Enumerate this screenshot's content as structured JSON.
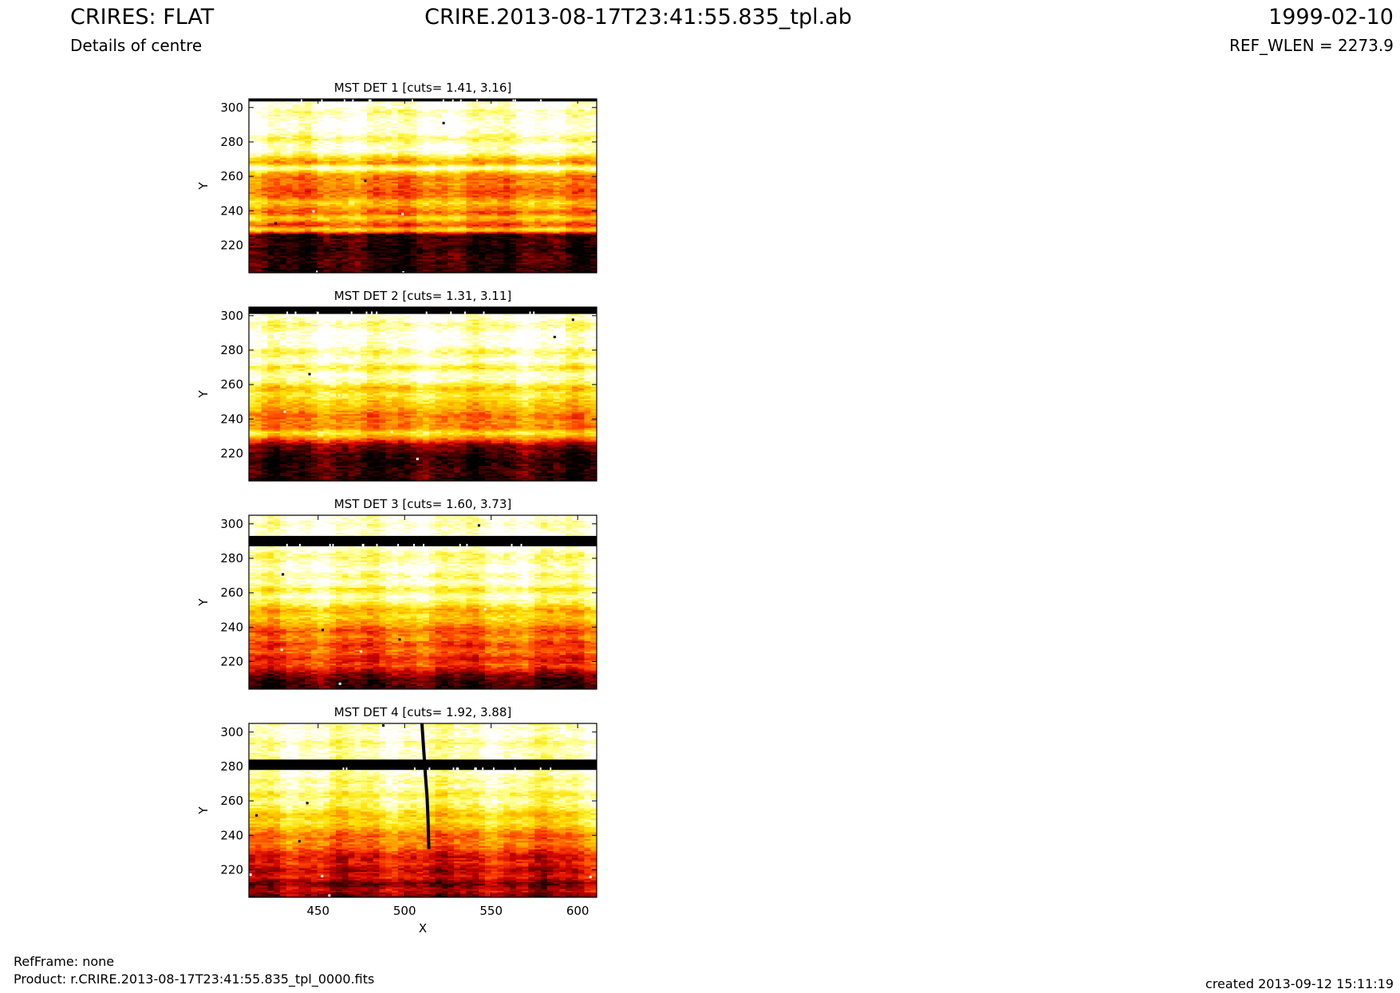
{
  "header": {
    "title_left": "CRIRES: FLAT",
    "subtitle_left": "Details of centre",
    "title_center": "CRIRE.2013-08-17T23:41:55.835_tpl.ab",
    "title_right": "1999-02-10",
    "subtitle_right": "REF_WLEN = 2273.9"
  },
  "footer": {
    "refframe": "RefFrame: none",
    "product": "Product: r.CRIRE.2013-08-17T23:41:55.835_tpl_0000.fits",
    "created": "created 2013-09-12 15:11:19"
  },
  "colors": {
    "colormap": [
      "#000000",
      "#5a0000",
      "#c80000",
      "#ff4000",
      "#ff9a00",
      "#ffe000",
      "#ffff80",
      "#ffffff"
    ]
  },
  "chart_data": [
    {
      "type": "heatmap",
      "title": "MST DET 1 [cuts= 1.41, 3.16]",
      "xlabel": "",
      "ylabel": "Y",
      "xlim": [
        410,
        611
      ],
      "ylim": [
        204,
        305
      ],
      "xticks": [
        450,
        500,
        550,
        600
      ],
      "yticks": [
        220,
        240,
        260,
        280,
        300
      ],
      "cuts": [
        1.41,
        3.16
      ],
      "row_profile": [
        {
          "y": 204,
          "v": 0.05
        },
        {
          "y": 212,
          "v": 0.1
        },
        {
          "y": 218,
          "v": 0.05
        },
        {
          "y": 222,
          "v": 0.1
        },
        {
          "y": 226,
          "v": 0.06
        },
        {
          "y": 229,
          "v": 0.75
        },
        {
          "y": 232,
          "v": 0.4
        },
        {
          "y": 236,
          "v": 0.72
        },
        {
          "y": 239,
          "v": 0.45
        },
        {
          "y": 242,
          "v": 0.58
        },
        {
          "y": 245,
          "v": 0.7
        },
        {
          "y": 248,
          "v": 0.5
        },
        {
          "y": 252,
          "v": 0.45
        },
        {
          "y": 256,
          "v": 0.55
        },
        {
          "y": 259,
          "v": 0.5
        },
        {
          "y": 262,
          "v": 0.62
        },
        {
          "y": 265,
          "v": 1.0
        },
        {
          "y": 268,
          "v": 0.55
        },
        {
          "y": 271,
          "v": 0.7
        },
        {
          "y": 274,
          "v": 0.95
        },
        {
          "y": 278,
          "v": 0.98
        },
        {
          "y": 282,
          "v": 0.82
        },
        {
          "y": 286,
          "v": 0.98
        },
        {
          "y": 290,
          "v": 1.0
        },
        {
          "y": 294,
          "v": 0.97
        },
        {
          "y": 298,
          "v": 0.88
        },
        {
          "y": 300,
          "v": 1.0
        },
        {
          "y": 305,
          "v": 1.0
        }
      ],
      "masked_rows": [
        [
          303.5,
          305
        ]
      ]
    },
    {
      "type": "heatmap",
      "title": "MST DET 2 [cuts= 1.31, 3.11]",
      "xlabel": "",
      "ylabel": "Y",
      "xlim": [
        410,
        611
      ],
      "ylim": [
        204,
        305
      ],
      "xticks": [
        450,
        500,
        550,
        600
      ],
      "yticks": [
        220,
        240,
        260,
        280,
        300
      ],
      "cuts": [
        1.31,
        3.11
      ],
      "row_profile": [
        {
          "y": 204,
          "v": 0.05
        },
        {
          "y": 210,
          "v": 0.1
        },
        {
          "y": 216,
          "v": 0.05
        },
        {
          "y": 220,
          "v": 0.12
        },
        {
          "y": 225,
          "v": 0.2
        },
        {
          "y": 229,
          "v": 0.55
        },
        {
          "y": 232,
          "v": 0.78
        },
        {
          "y": 235,
          "v": 0.5
        },
        {
          "y": 238,
          "v": 0.55
        },
        {
          "y": 242,
          "v": 0.5
        },
        {
          "y": 246,
          "v": 0.62
        },
        {
          "y": 250,
          "v": 0.68
        },
        {
          "y": 254,
          "v": 0.8
        },
        {
          "y": 258,
          "v": 0.65
        },
        {
          "y": 262,
          "v": 0.9
        },
        {
          "y": 266,
          "v": 0.98
        },
        {
          "y": 270,
          "v": 0.75
        },
        {
          "y": 274,
          "v": 1.0
        },
        {
          "y": 279,
          "v": 0.82
        },
        {
          "y": 283,
          "v": 1.0
        },
        {
          "y": 290,
          "v": 1.0
        },
        {
          "y": 295,
          "v": 0.86
        },
        {
          "y": 299,
          "v": 1.0
        },
        {
          "y": 305,
          "v": 1.0
        }
      ],
      "masked_rows": [
        [
          301,
          305
        ]
      ]
    },
    {
      "type": "heatmap",
      "title": "MST DET 3 [cuts= 1.60, 3.73]",
      "xlabel": "",
      "ylabel": "Y",
      "xlim": [
        410,
        611
      ],
      "ylim": [
        204,
        305
      ],
      "xticks": [
        450,
        500,
        550,
        600
      ],
      "yticks": [
        220,
        240,
        260,
        280,
        300
      ],
      "cuts": [
        1.6,
        3.73
      ],
      "row_profile": [
        {
          "y": 204,
          "v": 0.08
        },
        {
          "y": 210,
          "v": 0.12
        },
        {
          "y": 214,
          "v": 0.25
        },
        {
          "y": 218,
          "v": 0.45
        },
        {
          "y": 222,
          "v": 0.35
        },
        {
          "y": 226,
          "v": 0.5
        },
        {
          "y": 230,
          "v": 0.4
        },
        {
          "y": 234,
          "v": 0.55
        },
        {
          "y": 238,
          "v": 0.45
        },
        {
          "y": 242,
          "v": 0.6
        },
        {
          "y": 246,
          "v": 0.72
        },
        {
          "y": 250,
          "v": 0.6
        },
        {
          "y": 254,
          "v": 0.82
        },
        {
          "y": 258,
          "v": 0.95
        },
        {
          "y": 262,
          "v": 0.75
        },
        {
          "y": 266,
          "v": 0.98
        },
        {
          "y": 270,
          "v": 0.85
        },
        {
          "y": 274,
          "v": 1.0
        },
        {
          "y": 278,
          "v": 0.9
        },
        {
          "y": 282,
          "v": 0.85
        },
        {
          "y": 286,
          "v": 1.0
        },
        {
          "y": 292,
          "v": 1.0
        },
        {
          "y": 296,
          "v": 1.0
        },
        {
          "y": 300,
          "v": 0.92
        },
        {
          "y": 305,
          "v": 1.0
        }
      ],
      "masked_rows": [
        [
          287,
          293
        ]
      ]
    },
    {
      "type": "heatmap",
      "title": "MST DET 4 [cuts= 1.92, 3.88]",
      "xlabel": "X",
      "ylabel": "Y",
      "xlim": [
        410,
        611
      ],
      "ylim": [
        204,
        305
      ],
      "xticks": [
        450,
        500,
        550,
        600
      ],
      "yticks": [
        220,
        240,
        260,
        280,
        300
      ],
      "cuts": [
        1.92,
        3.88
      ],
      "row_profile": [
        {
          "y": 204,
          "v": 0.12
        },
        {
          "y": 208,
          "v": 0.3
        },
        {
          "y": 212,
          "v": 0.15
        },
        {
          "y": 216,
          "v": 0.35
        },
        {
          "y": 220,
          "v": 0.25
        },
        {
          "y": 224,
          "v": 0.38
        },
        {
          "y": 228,
          "v": 0.3
        },
        {
          "y": 232,
          "v": 0.45
        },
        {
          "y": 236,
          "v": 0.55
        },
        {
          "y": 240,
          "v": 0.48
        },
        {
          "y": 244,
          "v": 0.62
        },
        {
          "y": 248,
          "v": 0.75
        },
        {
          "y": 252,
          "v": 0.65
        },
        {
          "y": 256,
          "v": 0.8
        },
        {
          "y": 260,
          "v": 0.88
        },
        {
          "y": 264,
          "v": 0.78
        },
        {
          "y": 268,
          "v": 0.92
        },
        {
          "y": 272,
          "v": 0.85
        },
        {
          "y": 276,
          "v": 0.95
        },
        {
          "y": 286,
          "v": 0.92
        },
        {
          "y": 290,
          "v": 0.95
        },
        {
          "y": 294,
          "v": 0.85
        },
        {
          "y": 298,
          "v": 0.98
        },
        {
          "y": 305,
          "v": 0.92
        }
      ],
      "masked_rows": [
        [
          278,
          284
        ]
      ],
      "masked_trace": [
        {
          "x": 510,
          "y": 305
        },
        {
          "x": 511,
          "y": 290
        },
        {
          "x": 512,
          "y": 275
        },
        {
          "x": 513,
          "y": 262
        },
        {
          "x": 513.5,
          "y": 250
        },
        {
          "x": 514,
          "y": 232
        }
      ]
    }
  ]
}
